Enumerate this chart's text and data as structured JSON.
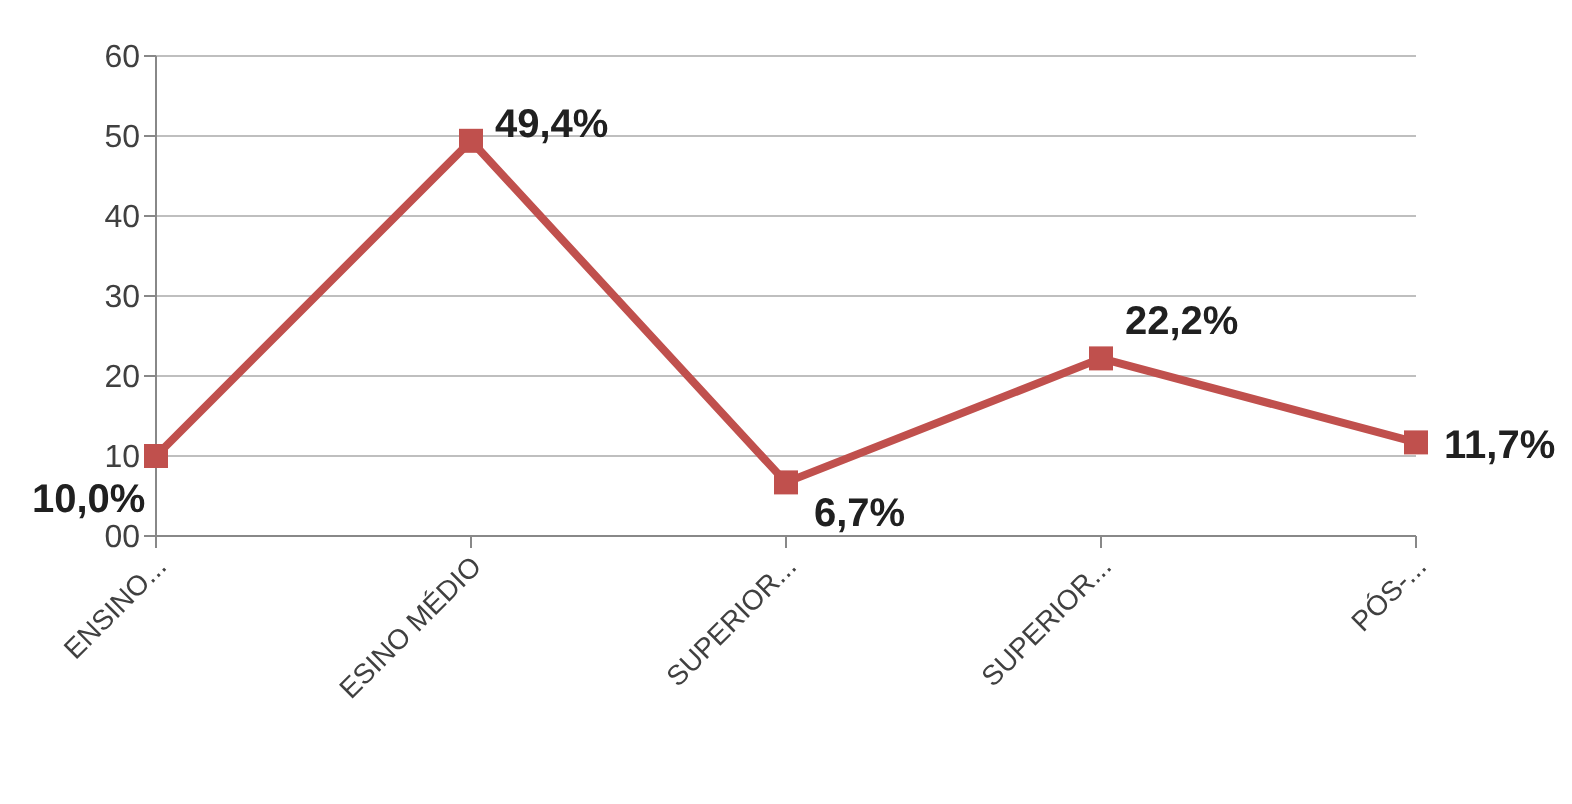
{
  "chart_data": {
    "type": "line",
    "categories": [
      "ENSINO...",
      "ESINO MÉDIO",
      "SUPERIOR...",
      "SUPERIOR...",
      "PÓS-..."
    ],
    "series": [
      {
        "color": "#c0504d",
        "values": [
          10.0,
          49.4,
          6.7,
          22.2,
          11.7
        ],
        "value_labels": [
          "10,0%",
          "49,4%",
          "6,7%",
          "22,2%",
          "11,7%"
        ]
      }
    ],
    "ylim": [
      0,
      60
    ],
    "yticks": [
      {
        "value": 0,
        "label": "00"
      },
      10,
      20,
      30,
      40,
      50,
      60
    ],
    "grid": "y",
    "marker": "square",
    "line_style": "solid",
    "legend": false
  }
}
